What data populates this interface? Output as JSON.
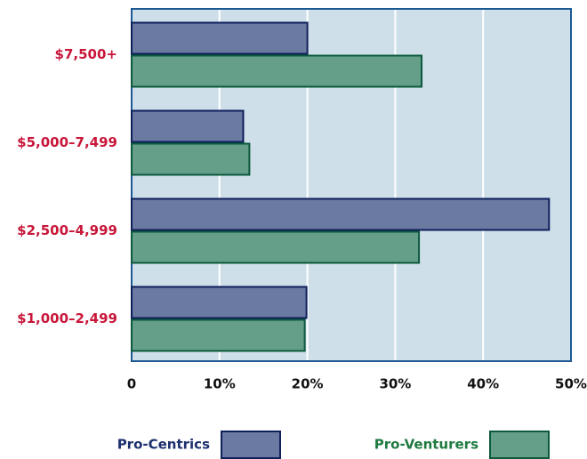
{
  "chart_data": {
    "type": "hbar",
    "categories": [
      "$7,500+",
      "$5,000–7,499",
      "$2,500–4,999",
      "$1,000–2,499"
    ],
    "series": [
      {
        "name": "Pro-Centrics",
        "color": "#6a7aa1",
        "values": [
          20,
          12.7,
          47.5,
          19.9
        ]
      },
      {
        "name": "Pro-Venturers",
        "color": "#659f8a",
        "values": [
          33,
          13.4,
          32.7,
          19.7
        ]
      }
    ],
    "xlim": [
      0,
      50
    ],
    "xticks": [
      0,
      {
        "value": 10,
        "label": "10%"
      },
      {
        "value": 20,
        "label": "20%"
      },
      {
        "value": 30,
        "label": "30%"
      },
      {
        "value": 40,
        "label": "40%"
      },
      {
        "value": 50,
        "label": "50%"
      }
    ],
    "grid": true
  }
}
